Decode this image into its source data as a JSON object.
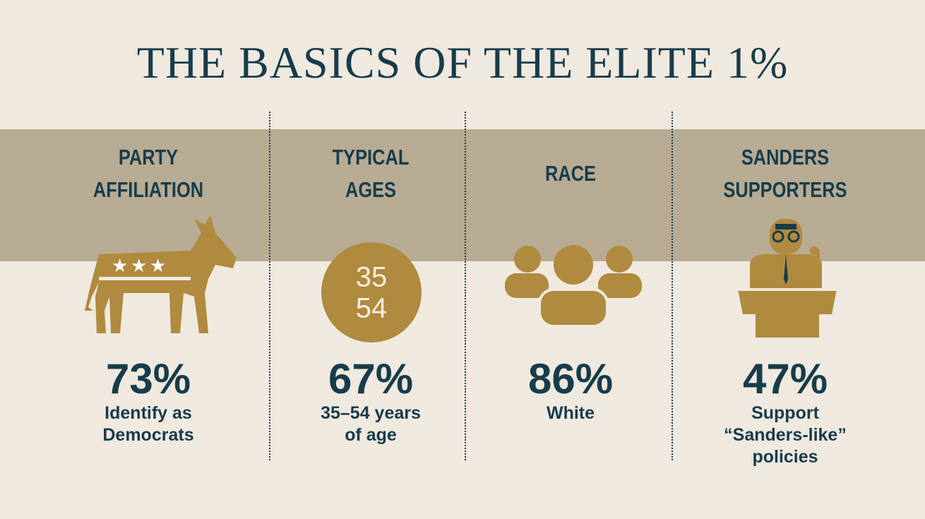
{
  "title": "THE BASICS OF THE ELITE 1%",
  "panels": [
    {
      "heading": [
        "PARTY",
        "AFFILIATION"
      ],
      "stat": "73%",
      "caption": [
        "Identify as",
        "Democrats"
      ]
    },
    {
      "heading": [
        "TYPICAL",
        "AGES"
      ],
      "icon_text": [
        "35",
        "54"
      ],
      "stat": "67%",
      "caption": [
        "35–54 years",
        "of age"
      ]
    },
    {
      "heading": [
        "RACE"
      ],
      "stat": "86%",
      "caption": [
        "White"
      ]
    },
    {
      "heading": [
        "SANDERS",
        "SUPPORTERS"
      ],
      "stat": "47%",
      "caption": [
        "Support",
        "“Sanders-like”",
        "policies"
      ]
    }
  ]
}
